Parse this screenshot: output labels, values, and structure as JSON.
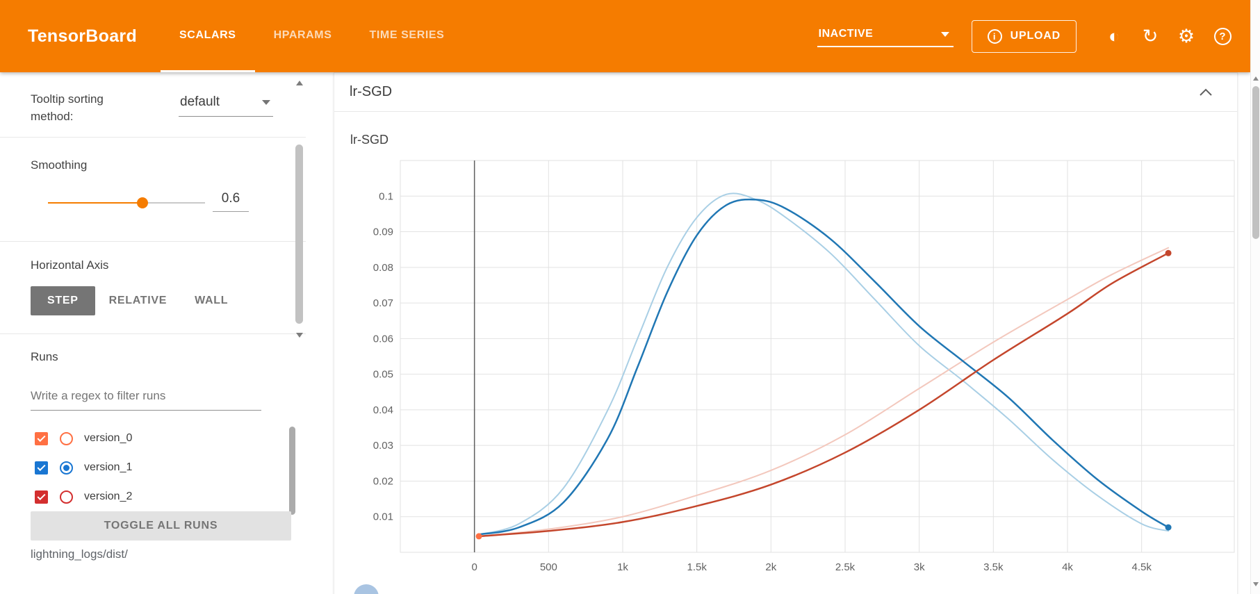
{
  "header": {
    "logo": "TensorBoard",
    "tabs": [
      {
        "label": "SCALARS",
        "active": true
      },
      {
        "label": "HPARAMS",
        "active": false
      },
      {
        "label": "TIME SERIES",
        "active": false
      }
    ],
    "status_dropdown": "INACTIVE",
    "upload_label": "UPLOAD",
    "icons": {
      "upload": "i",
      "brightness": "◐",
      "refresh": "↻",
      "settings": "⚙",
      "help": "?"
    },
    "bar_color": "#f57c00"
  },
  "sidebar": {
    "tooltip_sorting": {
      "label": "Tooltip sorting method:",
      "value": "default"
    },
    "smoothing": {
      "label": "Smoothing",
      "value": "0.6"
    },
    "horizontal_axis": {
      "label": "Horizontal Axis",
      "options": [
        {
          "label": "STEP",
          "active": true
        },
        {
          "label": "RELATIVE",
          "active": false
        },
        {
          "label": "WALL",
          "active": false
        }
      ]
    },
    "runs": {
      "label": "Runs",
      "filter_placeholder": "Write a regex to filter runs",
      "items": [
        {
          "name": "version_0",
          "color": "#ff7043",
          "checked": true,
          "radio_selected": false
        },
        {
          "name": "version_1",
          "color": "#1976d2",
          "checked": true,
          "radio_selected": true
        },
        {
          "name": "version_2",
          "color": "#d32f2f",
          "checked": true,
          "radio_selected": false
        }
      ],
      "toggle_all_label": "TOGGLE ALL RUNS",
      "log_dir": "lightning_logs/dist/"
    }
  },
  "main": {
    "card_title": "lr-SGD"
  },
  "chart_data": {
    "type": "line",
    "title": "lr-SGD",
    "xlabel": "",
    "ylabel": "",
    "xlim": [
      -500,
      5125
    ],
    "ylim": [
      0,
      0.11
    ],
    "grid": true,
    "legend": "none",
    "smoothing": 0.6,
    "x_ticks": [
      {
        "v": 0,
        "label": "0"
      },
      {
        "v": 500,
        "label": "500"
      },
      {
        "v": 1000,
        "label": "1k"
      },
      {
        "v": 1500,
        "label": "1.5k"
      },
      {
        "v": 2000,
        "label": "2k"
      },
      {
        "v": 2500,
        "label": "2.5k"
      },
      {
        "v": 3000,
        "label": "3k"
      },
      {
        "v": 3500,
        "label": "3.5k"
      },
      {
        "v": 4000,
        "label": "4k"
      },
      {
        "v": 4500,
        "label": "4.5k"
      }
    ],
    "y_ticks": [
      {
        "v": 0.01,
        "label": "0.01"
      },
      {
        "v": 0.02,
        "label": "0.02"
      },
      {
        "v": 0.03,
        "label": "0.03"
      },
      {
        "v": 0.04,
        "label": "0.04"
      },
      {
        "v": 0.05,
        "label": "0.05"
      },
      {
        "v": 0.06,
        "label": "0.06"
      },
      {
        "v": 0.07,
        "label": "0.07"
      },
      {
        "v": 0.08,
        "label": "0.08"
      },
      {
        "v": 0.09,
        "label": "0.09"
      },
      {
        "v": 0.1,
        "label": "0.1"
      }
    ],
    "series": [
      {
        "name": "version_1 (unsmoothed)",
        "color": "#a9cfe5",
        "width": 2,
        "end_marker": false,
        "x": [
          30,
          300,
          600,
          900,
          1100,
          1300,
          1500,
          1700,
          1900,
          2100,
          2400,
          2700,
          3000,
          3300,
          3600,
          3900,
          4200,
          4500,
          4680
        ],
        "y": [
          0.005,
          0.008,
          0.018,
          0.04,
          0.06,
          0.08,
          0.094,
          0.1005,
          0.099,
          0.094,
          0.084,
          0.071,
          0.058,
          0.048,
          0.0375,
          0.026,
          0.016,
          0.008,
          0.006
        ]
      },
      {
        "name": "version_2 (unsmoothed)",
        "color": "#f3c8bd",
        "width": 2,
        "end_marker": false,
        "x": [
          30,
          500,
          1000,
          1500,
          2000,
          2500,
          3000,
          3500,
          4000,
          4300,
          4680
        ],
        "y": [
          0.0045,
          0.0065,
          0.01,
          0.016,
          0.023,
          0.033,
          0.046,
          0.059,
          0.071,
          0.078,
          0.0855
        ]
      },
      {
        "name": "version_1",
        "color": "#2077b4",
        "width": 2.5,
        "end_marker": true,
        "x": [
          30,
          300,
          600,
          900,
          1100,
          1300,
          1500,
          1700,
          1900,
          2100,
          2400,
          2700,
          3000,
          3300,
          3600,
          3900,
          4200,
          4500,
          4680
        ],
        "y": [
          0.005,
          0.007,
          0.014,
          0.032,
          0.052,
          0.073,
          0.089,
          0.0975,
          0.099,
          0.0965,
          0.088,
          0.076,
          0.0635,
          0.0535,
          0.0435,
          0.0315,
          0.0205,
          0.0115,
          0.007
        ]
      },
      {
        "name": "version_2",
        "color": "#c4462c",
        "width": 2.5,
        "end_marker": true,
        "x": [
          30,
          500,
          1000,
          1500,
          2000,
          2500,
          3000,
          3500,
          4000,
          4300,
          4680
        ],
        "y": [
          0.0045,
          0.006,
          0.0085,
          0.013,
          0.019,
          0.028,
          0.04,
          0.054,
          0.067,
          0.0755,
          0.084
        ]
      },
      {
        "name": "version_0",
        "color": "#ff7043",
        "width": 2,
        "end_marker": true,
        "x": [
          30
        ],
        "y": [
          0.0045
        ]
      }
    ]
  }
}
